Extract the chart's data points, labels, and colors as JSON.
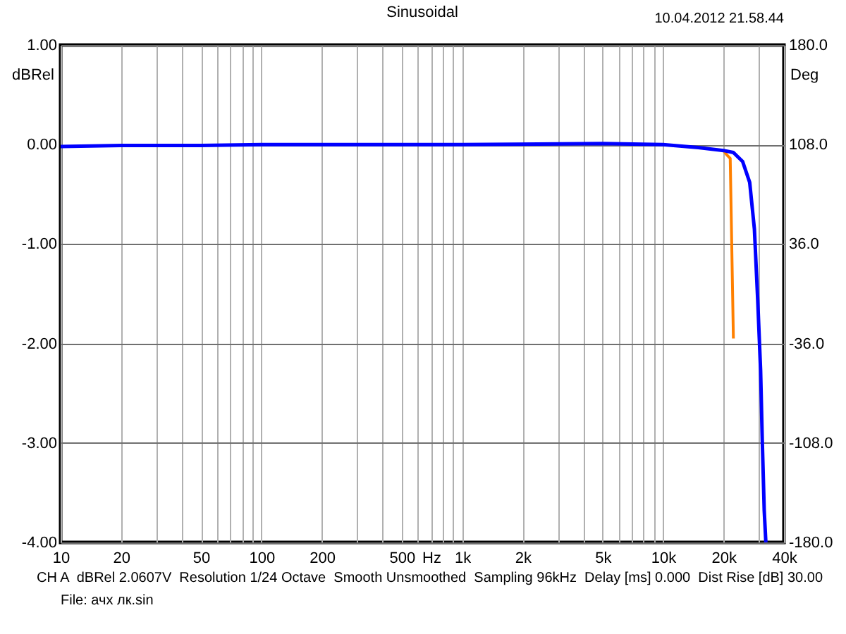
{
  "chart_data": {
    "type": "line",
    "title": "Sinusoidal",
    "xlabel": "Hz",
    "ylabel": "dBRel",
    "y2label": "Deg",
    "annotations": [
      "10.04.2012 21.58.44",
      "CH A  dBRel 2.0607V  Resolution 1/24 Octave  Smooth Unsmoothed  Sampling 96kHz  Delay [ms] 0.000  Dist Rise [dB] 30.00",
      "File: ачх лк.sin"
    ],
    "log": "x",
    "grid": true,
    "xlim": [
      10,
      40000
    ],
    "xticks": [
      10,
      20,
      {
        "value": 30,
        "label": null
      },
      {
        "value": 40,
        "label": null
      },
      50,
      {
        "value": 60,
        "label": null
      },
      {
        "value": 70,
        "label": null
      },
      {
        "value": 80,
        "label": null
      },
      {
        "value": 90,
        "label": null
      },
      100,
      200,
      {
        "value": 300,
        "label": null
      },
      {
        "value": 400,
        "label": null
      },
      500,
      {
        "value": 600,
        "label": null
      },
      {
        "value": 700,
        "label": null
      },
      {
        "value": 800,
        "label": null
      },
      {
        "value": 900,
        "label": null
      },
      {
        "value": 1000,
        "label": "1k"
      },
      {
        "value": 2000,
        "label": "2k"
      },
      {
        "value": 3000,
        "label": null
      },
      {
        "value": 4000,
        "label": null
      },
      {
        "value": 5000,
        "label": "5k"
      },
      {
        "value": 6000,
        "label": null
      },
      {
        "value": 7000,
        "label": null
      },
      {
        "value": 8000,
        "label": null
      },
      {
        "value": 9000,
        "label": null
      },
      {
        "value": 10000,
        "label": "10k"
      },
      {
        "value": 20000,
        "label": "20k"
      },
      {
        "value": 30000,
        "label": null
      },
      {
        "value": 40000,
        "label": "40k"
      }
    ],
    "ylim": [
      -4,
      1
    ],
    "yticks": [
      {
        "value": -4,
        "label": "-4.00"
      },
      {
        "value": -3,
        "label": "-3.00"
      },
      {
        "value": -2,
        "label": "-2.00"
      },
      {
        "value": -1,
        "label": "-1.00"
      },
      {
        "value": 0,
        "label": "0.00"
      },
      {
        "value": 1,
        "label": "1.00"
      }
    ],
    "y2lim": [
      -180,
      180
    ],
    "y2ticks": [
      {
        "value": -180,
        "label": "-180.0"
      },
      {
        "value": -108,
        "label": "-108.0"
      },
      {
        "value": -36,
        "label": "-36.0"
      },
      {
        "value": 36,
        "label": "36.0"
      },
      {
        "value": 108,
        "label": "108.0"
      },
      {
        "value": 180,
        "label": "180.0"
      }
    ],
    "series": [
      {
        "color": "#ff8000",
        "x": [
          20000,
          20700,
          21600,
          22400
        ],
        "values": [
          -0.06,
          -0.1,
          -0.14,
          -1.95
        ]
      },
      {
        "color": "#0000ff",
        "x": [
          10,
          20,
          50,
          100,
          1000,
          5000,
          10000,
          15000,
          20000,
          22400,
          24900,
          27000,
          28500,
          29600,
          30600,
          31200,
          31900,
          32500
        ],
        "values": [
          -0.02,
          -0.01,
          -0.01,
          0,
          0,
          0.01,
          0,
          -0.03,
          -0.06,
          -0.08,
          -0.17,
          -0.38,
          -0.85,
          -1.56,
          -2.27,
          -2.98,
          -3.68,
          -4.0
        ]
      }
    ]
  }
}
